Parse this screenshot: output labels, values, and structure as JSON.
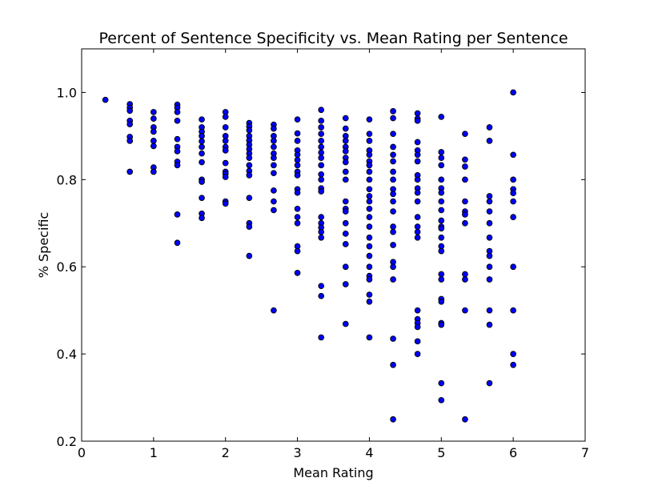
{
  "chart_data": {
    "type": "scatter",
    "title": "Percent of Sentence Specificity vs. Mean Rating per Sentence",
    "xlabel": "Mean Rating",
    "ylabel": "% Specific",
    "xlim": [
      0,
      7
    ],
    "ylim": [
      0.2,
      1.1
    ],
    "xticks": [
      "0",
      "1",
      "2",
      "3",
      "4",
      "5",
      "6",
      "7"
    ],
    "yticks": [
      "0.2",
      "0.4",
      "0.6",
      "0.8",
      "1.0"
    ],
    "grid": false,
    "marker_color": "#0000ff",
    "marker_edge": "#000000",
    "series": [
      {
        "points": [
          [
            0.33,
            0.983
          ],
          [
            0.67,
            0.973
          ],
          [
            0.67,
            0.965
          ],
          [
            0.67,
            0.958
          ],
          [
            0.67,
            0.935
          ],
          [
            0.67,
            0.927
          ],
          [
            0.67,
            0.898
          ],
          [
            0.67,
            0.889
          ],
          [
            0.67,
            0.818
          ],
          [
            1.0,
            0.955
          ],
          [
            1.0,
            0.94
          ],
          [
            1.0,
            0.92
          ],
          [
            1.0,
            0.91
          ],
          [
            1.0,
            0.889
          ],
          [
            1.0,
            0.877
          ],
          [
            1.0,
            0.828
          ],
          [
            1.0,
            0.818
          ],
          [
            1.33,
            0.972
          ],
          [
            1.33,
            0.965
          ],
          [
            1.33,
            0.955
          ],
          [
            1.33,
            0.935
          ],
          [
            1.33,
            0.893
          ],
          [
            1.33,
            0.875
          ],
          [
            1.33,
            0.865
          ],
          [
            1.33,
            0.841
          ],
          [
            1.33,
            0.833
          ],
          [
            1.33,
            0.72
          ],
          [
            1.33,
            0.655
          ],
          [
            1.67,
            0.938
          ],
          [
            1.67,
            0.92
          ],
          [
            1.67,
            0.91
          ],
          [
            1.67,
            0.9
          ],
          [
            1.67,
            0.888
          ],
          [
            1.67,
            0.875
          ],
          [
            1.67,
            0.86
          ],
          [
            1.67,
            0.84
          ],
          [
            1.67,
            0.8
          ],
          [
            1.67,
            0.795
          ],
          [
            1.67,
            0.758
          ],
          [
            1.67,
            0.722
          ],
          [
            1.67,
            0.712
          ],
          [
            2.0,
            0.955
          ],
          [
            2.0,
            0.944
          ],
          [
            2.0,
            0.92
          ],
          [
            2.0,
            0.9
          ],
          [
            2.0,
            0.889
          ],
          [
            2.0,
            0.875
          ],
          [
            2.0,
            0.867
          ],
          [
            2.0,
            0.838
          ],
          [
            2.0,
            0.818
          ],
          [
            2.0,
            0.813
          ],
          [
            2.0,
            0.806
          ],
          [
            2.0,
            0.75
          ],
          [
            2.0,
            0.745
          ],
          [
            2.33,
            0.93
          ],
          [
            2.33,
            0.922
          ],
          [
            2.33,
            0.913
          ],
          [
            2.33,
            0.9
          ],
          [
            2.33,
            0.89
          ],
          [
            2.33,
            0.88
          ],
          [
            2.33,
            0.87
          ],
          [
            2.33,
            0.86
          ],
          [
            2.33,
            0.85
          ],
          [
            2.33,
            0.833
          ],
          [
            2.33,
            0.82
          ],
          [
            2.33,
            0.81
          ],
          [
            2.33,
            0.758
          ],
          [
            2.33,
            0.7
          ],
          [
            2.33,
            0.692
          ],
          [
            2.33,
            0.625
          ],
          [
            2.67,
            0.926
          ],
          [
            2.67,
            0.917
          ],
          [
            2.67,
            0.9
          ],
          [
            2.67,
            0.889
          ],
          [
            2.67,
            0.875
          ],
          [
            2.67,
            0.86
          ],
          [
            2.67,
            0.85
          ],
          [
            2.67,
            0.833
          ],
          [
            2.67,
            0.815
          ],
          [
            2.67,
            0.775
          ],
          [
            2.67,
            0.75
          ],
          [
            2.67,
            0.73
          ],
          [
            2.67,
            0.5
          ],
          [
            3.0,
            0.938
          ],
          [
            3.0,
            0.906
          ],
          [
            3.0,
            0.889
          ],
          [
            3.0,
            0.867
          ],
          [
            3.0,
            0.857
          ],
          [
            3.0,
            0.845
          ],
          [
            3.0,
            0.833
          ],
          [
            3.0,
            0.818
          ],
          [
            3.0,
            0.81
          ],
          [
            3.0,
            0.778
          ],
          [
            3.0,
            0.77
          ],
          [
            3.0,
            0.733
          ],
          [
            3.0,
            0.714
          ],
          [
            3.0,
            0.7
          ],
          [
            3.0,
            0.647
          ],
          [
            3.0,
            0.636
          ],
          [
            3.0,
            0.586
          ],
          [
            3.33,
            0.96
          ],
          [
            3.33,
            0.935
          ],
          [
            3.33,
            0.92
          ],
          [
            3.33,
            0.905
          ],
          [
            3.33,
            0.889
          ],
          [
            3.33,
            0.875
          ],
          [
            3.33,
            0.862
          ],
          [
            3.33,
            0.85
          ],
          [
            3.33,
            0.833
          ],
          [
            3.33,
            0.812
          ],
          [
            3.33,
            0.8
          ],
          [
            3.33,
            0.78
          ],
          [
            3.33,
            0.773
          ],
          [
            3.33,
            0.714
          ],
          [
            3.33,
            0.7
          ],
          [
            3.33,
            0.69
          ],
          [
            3.33,
            0.68
          ],
          [
            3.33,
            0.667
          ],
          [
            3.33,
            0.556
          ],
          [
            3.33,
            0.533
          ],
          [
            3.33,
            0.438
          ],
          [
            3.67,
            0.941
          ],
          [
            3.67,
            0.917
          ],
          [
            3.67,
            0.9
          ],
          [
            3.67,
            0.889
          ],
          [
            3.67,
            0.875
          ],
          [
            3.67,
            0.865
          ],
          [
            3.67,
            0.85
          ],
          [
            3.67,
            0.84
          ],
          [
            3.67,
            0.818
          ],
          [
            3.67,
            0.8
          ],
          [
            3.67,
            0.75
          ],
          [
            3.67,
            0.733
          ],
          [
            3.67,
            0.727
          ],
          [
            3.67,
            0.7
          ],
          [
            3.67,
            0.676
          ],
          [
            3.67,
            0.652
          ],
          [
            3.67,
            0.6
          ],
          [
            3.67,
            0.56
          ],
          [
            3.67,
            0.469
          ],
          [
            4.0,
            0.938
          ],
          [
            4.0,
            0.905
          ],
          [
            4.0,
            0.889
          ],
          [
            4.0,
            0.867
          ],
          [
            4.0,
            0.857
          ],
          [
            4.0,
            0.842
          ],
          [
            4.0,
            0.833
          ],
          [
            4.0,
            0.818
          ],
          [
            4.0,
            0.8
          ],
          [
            4.0,
            0.778
          ],
          [
            4.0,
            0.762
          ],
          [
            4.0,
            0.75
          ],
          [
            4.0,
            0.733
          ],
          [
            4.0,
            0.714
          ],
          [
            4.0,
            0.692
          ],
          [
            4.0,
            0.667
          ],
          [
            4.0,
            0.647
          ],
          [
            4.0,
            0.625
          ],
          [
            4.0,
            0.6
          ],
          [
            4.0,
            0.579
          ],
          [
            4.0,
            0.571
          ],
          [
            4.0,
            0.536
          ],
          [
            4.0,
            0.52
          ],
          [
            4.0,
            0.438
          ],
          [
            4.33,
            0.957
          ],
          [
            4.33,
            0.941
          ],
          [
            4.33,
            0.905
          ],
          [
            4.33,
            0.875
          ],
          [
            4.33,
            0.857
          ],
          [
            4.33,
            0.842
          ],
          [
            4.33,
            0.818
          ],
          [
            4.33,
            0.8
          ],
          [
            4.33,
            0.778
          ],
          [
            4.33,
            0.767
          ],
          [
            4.33,
            0.75
          ],
          [
            4.33,
            0.727
          ],
          [
            4.33,
            0.692
          ],
          [
            4.33,
            0.68
          ],
          [
            4.33,
            0.65
          ],
          [
            4.33,
            0.611
          ],
          [
            4.33,
            0.6
          ],
          [
            4.33,
            0.571
          ],
          [
            4.33,
            0.435
          ],
          [
            4.33,
            0.375
          ],
          [
            4.33,
            0.25
          ],
          [
            4.67,
            0.952
          ],
          [
            4.67,
            0.94
          ],
          [
            4.67,
            0.935
          ],
          [
            4.67,
            0.886
          ],
          [
            4.67,
            0.867
          ],
          [
            4.67,
            0.857
          ],
          [
            4.67,
            0.842
          ],
          [
            4.67,
            0.81
          ],
          [
            4.67,
            0.8
          ],
          [
            4.67,
            0.78
          ],
          [
            4.67,
            0.77
          ],
          [
            4.67,
            0.75
          ],
          [
            4.67,
            0.714
          ],
          [
            4.67,
            0.692
          ],
          [
            4.67,
            0.68
          ],
          [
            4.67,
            0.667
          ],
          [
            4.67,
            0.5
          ],
          [
            4.67,
            0.48
          ],
          [
            4.67,
            0.471
          ],
          [
            4.67,
            0.462
          ],
          [
            4.67,
            0.429
          ],
          [
            4.67,
            0.4
          ],
          [
            5.0,
            0.944
          ],
          [
            5.0,
            0.863
          ],
          [
            5.0,
            0.85
          ],
          [
            5.0,
            0.833
          ],
          [
            5.0,
            0.8
          ],
          [
            5.0,
            0.78
          ],
          [
            5.0,
            0.77
          ],
          [
            5.0,
            0.75
          ],
          [
            5.0,
            0.73
          ],
          [
            5.0,
            0.706
          ],
          [
            5.0,
            0.692
          ],
          [
            5.0,
            0.688
          ],
          [
            5.0,
            0.667
          ],
          [
            5.0,
            0.647
          ],
          [
            5.0,
            0.636
          ],
          [
            5.0,
            0.583
          ],
          [
            5.0,
            0.571
          ],
          [
            5.0,
            0.526
          ],
          [
            5.0,
            0.52
          ],
          [
            5.0,
            0.471
          ],
          [
            5.0,
            0.467
          ],
          [
            5.0,
            0.333
          ],
          [
            5.0,
            0.294
          ],
          [
            5.33,
            0.905
          ],
          [
            5.33,
            0.846
          ],
          [
            5.33,
            0.83
          ],
          [
            5.33,
            0.8
          ],
          [
            5.33,
            0.75
          ],
          [
            5.33,
            0.727
          ],
          [
            5.33,
            0.72
          ],
          [
            5.33,
            0.7
          ],
          [
            5.33,
            0.583
          ],
          [
            5.33,
            0.571
          ],
          [
            5.33,
            0.5
          ],
          [
            5.33,
            0.25
          ],
          [
            5.67,
            0.92
          ],
          [
            5.67,
            0.889
          ],
          [
            5.67,
            0.762
          ],
          [
            5.67,
            0.75
          ],
          [
            5.67,
            0.727
          ],
          [
            5.67,
            0.7
          ],
          [
            5.67,
            0.667
          ],
          [
            5.67,
            0.636
          ],
          [
            5.67,
            0.625
          ],
          [
            5.67,
            0.6
          ],
          [
            5.67,
            0.571
          ],
          [
            5.67,
            0.5
          ],
          [
            5.67,
            0.467
          ],
          [
            5.67,
            0.333
          ],
          [
            6.0,
            1.0
          ],
          [
            6.0,
            0.857
          ],
          [
            6.0,
            0.8
          ],
          [
            6.0,
            0.778
          ],
          [
            6.0,
            0.769
          ],
          [
            6.0,
            0.75
          ],
          [
            6.0,
            0.714
          ],
          [
            6.0,
            0.6
          ],
          [
            6.0,
            0.5
          ],
          [
            6.0,
            0.4
          ],
          [
            6.0,
            0.375
          ]
        ]
      }
    ]
  }
}
